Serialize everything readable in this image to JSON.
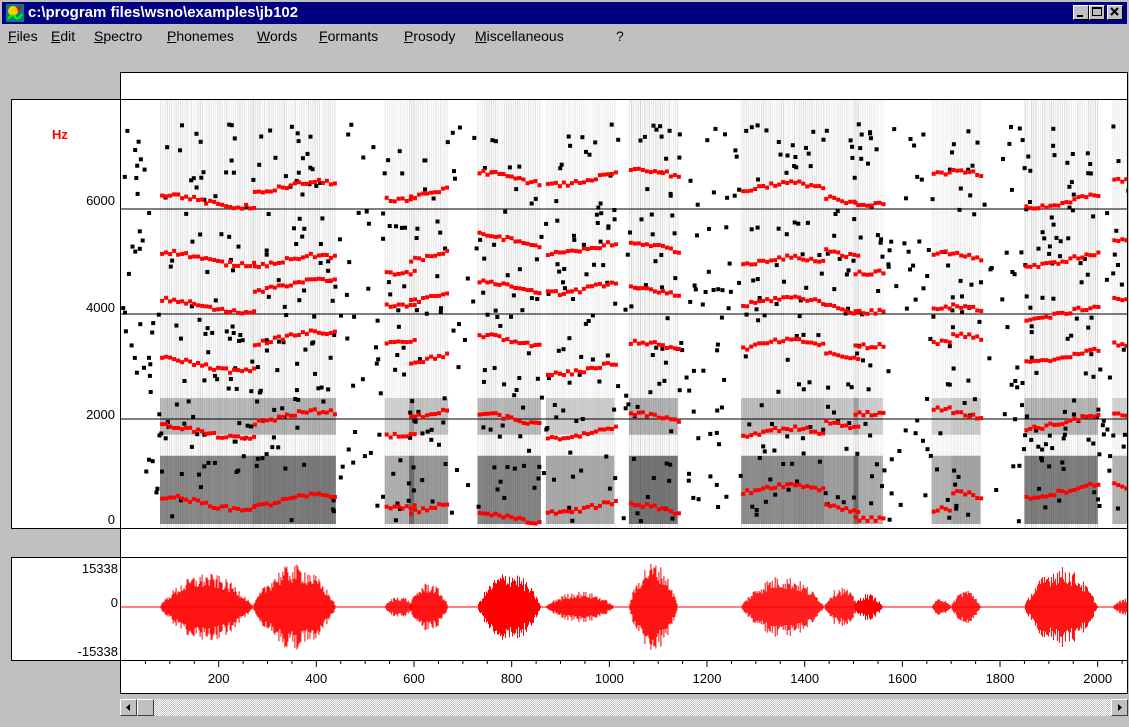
{
  "window": {
    "title": "c:\\program files\\wsno\\examples\\jb102"
  },
  "menu": {
    "items": [
      "Files",
      "Edit",
      "Spectro",
      "Phonemes",
      "Words",
      "Formants",
      "Prosody",
      "Miscellaneous",
      "?"
    ]
  },
  "spectrogram": {
    "unit_label": "Hz",
    "y_ticks": [
      "6000",
      "4000",
      "2000",
      "0"
    ],
    "y_tick_values": [
      6000,
      4000,
      2000,
      0
    ],
    "y_max": 8000
  },
  "waveform": {
    "y_ticks": [
      "15338",
      "0",
      "-15338"
    ],
    "bursts": [
      {
        "start": 80,
        "end": 270,
        "peak": 0.75
      },
      {
        "start": 270,
        "end": 440,
        "peak": 0.95
      },
      {
        "start": 540,
        "end": 600,
        "peak": 0.25
      },
      {
        "start": 590,
        "end": 670,
        "peak": 0.55
      },
      {
        "start": 730,
        "end": 860,
        "peak": 0.8
      },
      {
        "start": 870,
        "end": 1010,
        "peak": 0.35
      },
      {
        "start": 1040,
        "end": 1140,
        "peak": 1.0
      },
      {
        "start": 1270,
        "end": 1440,
        "peak": 0.7
      },
      {
        "start": 1440,
        "end": 1510,
        "peak": 0.45
      },
      {
        "start": 1500,
        "end": 1560,
        "peak": 0.3
      },
      {
        "start": 1660,
        "end": 1700,
        "peak": 0.2
      },
      {
        "start": 1700,
        "end": 1760,
        "peak": 0.4
      },
      {
        "start": 1850,
        "end": 2000,
        "peak": 0.9
      },
      {
        "start": 2030,
        "end": 2100,
        "peak": 0.2
      }
    ]
  },
  "time_axis": {
    "ticks": [
      "200",
      "400",
      "600",
      "800",
      "1000",
      "1200",
      "1400",
      "1600",
      "1800",
      "2000"
    ],
    "tick_values": [
      200,
      400,
      600,
      800,
      1000,
      1200,
      1400,
      1600,
      1800,
      2000
    ],
    "x_min": 0,
    "x_max": 2060
  },
  "colors": {
    "titlebar": "#000080",
    "formant_red": "#ff0000",
    "background": "#c0c0c0"
  }
}
